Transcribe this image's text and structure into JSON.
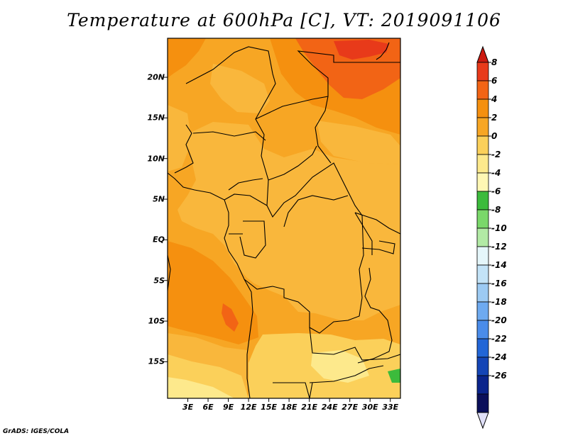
{
  "title": "Temperature at 600hPa [C], VT: 2019091106",
  "credit": "GrADS: IGES/COLA",
  "map": {
    "lat_labels": [
      "20N",
      "15N",
      "10N",
      "5N",
      "EQ",
      "5S",
      "10S",
      "15S"
    ],
    "lat_values": [
      20,
      15,
      10,
      5,
      0,
      -5,
      -10,
      -15
    ],
    "lon_labels": [
      "3E",
      "6E",
      "9E",
      "12E",
      "15E",
      "18E",
      "21E",
      "24E",
      "27E",
      "30E",
      "33E"
    ],
    "lon_values": [
      3,
      6,
      9,
      12,
      15,
      18,
      21,
      24,
      27,
      30,
      33
    ],
    "lon_range": [
      0,
      34.5
    ],
    "lat_range": [
      -19.5,
      24.8
    ]
  },
  "colorbar": {
    "labels": [
      "8",
      "6",
      "4",
      "2",
      "0",
      "-2",
      "-4",
      "-6",
      "-8",
      "-10",
      "-12",
      "-14",
      "-16",
      "-18",
      "-20",
      "-22",
      "-24",
      "-26"
    ],
    "colors": [
      "#e83a1a",
      "#f26415",
      "#f5900f",
      "#f7a624",
      "#fbd05a",
      "#fde98c",
      "#fff7b4",
      "#3cbb3c",
      "#7ad86a",
      "#b2eaa5",
      "#e5f6fa",
      "#c3e3f7",
      "#9ccaf3",
      "#6eaaf0",
      "#4a8cea",
      "#2266d7",
      "#1445b6",
      "#0a248c",
      "#0a0f5a"
    ],
    "top_arrow_color": "#cc1a10",
    "bottom_arrow_color": "#e0e0f8"
  }
}
